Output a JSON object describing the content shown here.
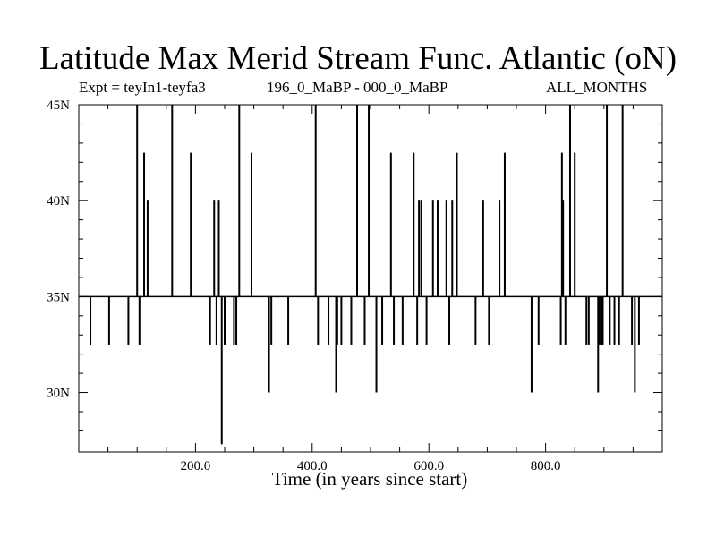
{
  "chart_data": {
    "type": "bar",
    "title": "Latitude Max Merid Stream Func. Atlantic (oN)",
    "subtitle_left": "Expt = teyIn1-teyfa3",
    "subtitle_center": "196_0_MaBP - 000_0_MaBP",
    "subtitle_right": "ALL_MONTHS",
    "xlabel": "Time (in years since start)",
    "ylabel": "",
    "xlim": [
      0,
      1000
    ],
    "ylim": [
      26.9,
      45
    ],
    "baseline": 35,
    "x_ticks": [
      200,
      400,
      600,
      800
    ],
    "x_tick_labels": [
      "200.0",
      "400.0",
      "600.0",
      "800.0"
    ],
    "y_ticks": [
      30,
      35,
      40,
      45
    ],
    "y_tick_labels": [
      "30N",
      "35N",
      "40N",
      "45N"
    ],
    "grid": false,
    "x": [
      20,
      52,
      85,
      100,
      104,
      112,
      118,
      160,
      192,
      225,
      232,
      236,
      240,
      245,
      250,
      266,
      270,
      275,
      296,
      326,
      330,
      359,
      406,
      410,
      428,
      441,
      443,
      450,
      467,
      477,
      490,
      497,
      510,
      520,
      535,
      540,
      555,
      574,
      580,
      583,
      587,
      596,
      607,
      615,
      630,
      635,
      640,
      648,
      680,
      693,
      703,
      721,
      730,
      776,
      788,
      826,
      828,
      830,
      834,
      842,
      850,
      870,
      874,
      890,
      892,
      895,
      898,
      905,
      910,
      918,
      926,
      932,
      948,
      953,
      960
    ],
    "values": [
      32.5,
      32.5,
      32.5,
      45,
      32.5,
      42.5,
      40,
      45,
      42.5,
      32.5,
      40,
      32.5,
      40,
      27.3,
      32.5,
      32.5,
      32.5,
      45,
      42.5,
      30,
      32.5,
      32.5,
      45,
      32.5,
      32.5,
      30,
      32.5,
      32.5,
      32.5,
      45,
      32.5,
      45,
      30,
      32.5,
      42.5,
      32.5,
      32.5,
      42.5,
      32.5,
      40,
      40,
      32.5,
      40,
      40,
      40,
      32.5,
      40,
      42.5,
      32.5,
      40,
      32.5,
      40,
      42.5,
      30,
      32.5,
      32.5,
      42.5,
      40,
      32.5,
      45,
      42.5,
      32.5,
      32.5,
      30,
      32.5,
      32.5,
      32.5,
      45,
      32.5,
      32.5,
      32.5,
      45,
      32.5,
      30,
      32.5
    ]
  }
}
